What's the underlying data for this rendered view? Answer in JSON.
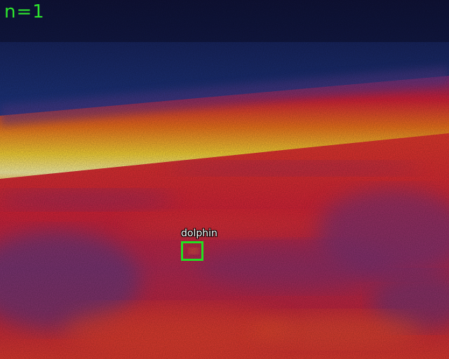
{
  "overlay": {
    "count_label": "n=1",
    "text_color": "#2ee62e"
  },
  "detections": [
    {
      "label": "dolphin",
      "box_color": "#21e021"
    }
  ],
  "palette": {
    "cold": "#1b2a6b",
    "cool": "#0f9a92",
    "warm": "#d8233a",
    "hot": "#fde94a"
  }
}
